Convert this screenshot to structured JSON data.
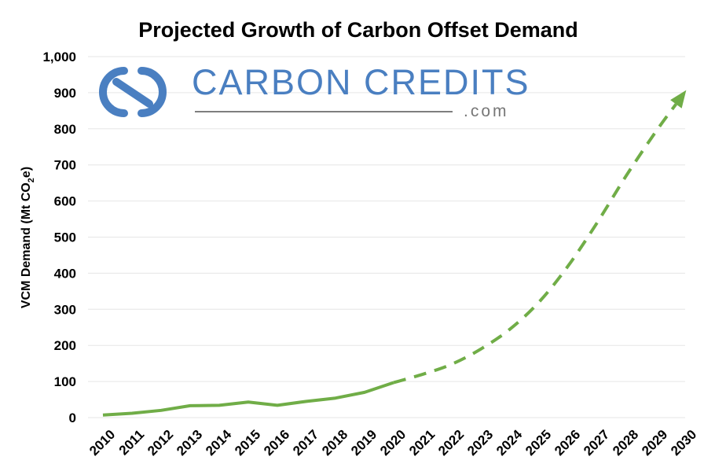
{
  "chart_data": {
    "type": "line",
    "title": "Projected Growth of Carbon Offset Demand",
    "ylabel": "VCM Demand (Mt CO",
    "ylabel_sub": "2",
    "ylabel_suffix": "e)",
    "xlabel": "",
    "ylim": [
      0,
      1000
    ],
    "yticks": [
      0,
      100,
      200,
      300,
      400,
      500,
      600,
      700,
      800,
      900,
      1000
    ],
    "ytick_labels": [
      "0",
      "100",
      "200",
      "300",
      "400",
      "500",
      "600",
      "700",
      "800",
      "900",
      "1,000"
    ],
    "categories": [
      "2010",
      "2011",
      "2012",
      "2013",
      "2014",
      "2015",
      "2016",
      "2017",
      "2018",
      "2019",
      "2020",
      "2021",
      "2022",
      "2023",
      "2024",
      "2025",
      "2026",
      "2027",
      "2028",
      "2029",
      "2030"
    ],
    "series": [
      {
        "style": "solid",
        "color": "#70ad47",
        "x": [
          "2010",
          "2011",
          "2012",
          "2013",
          "2014",
          "2015",
          "2016",
          "2017",
          "2018",
          "2019",
          "2020"
        ],
        "values": [
          7,
          12,
          20,
          33,
          34,
          43,
          34,
          45,
          54,
          70,
          97
        ]
      },
      {
        "style": "dashed-arrow",
        "color": "#70ad47",
        "x": [
          "2020",
          "2021",
          "2022",
          "2023",
          "2024",
          "2025",
          "2026",
          "2027",
          "2028",
          "2029",
          "2030"
        ],
        "values": [
          97,
          120,
          148,
          190,
          245,
          320,
          420,
          540,
          670,
          790,
          900
        ]
      }
    ],
    "grid": true,
    "legend": "none"
  },
  "watermark": {
    "brand": "CARBON CREDITS",
    "suffix": ".com",
    "color": "#4a7fc1"
  }
}
